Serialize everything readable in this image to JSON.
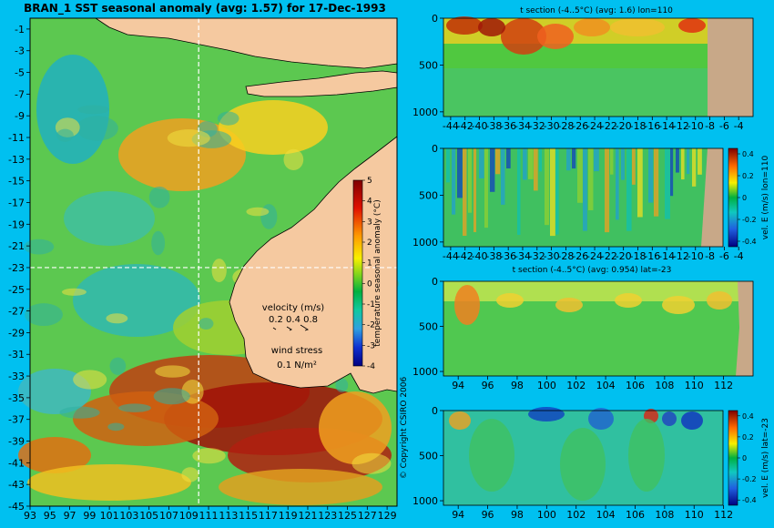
{
  "chart_data": [
    {
      "type": "heatmap",
      "panel": "map",
      "title": "BRAN_1 SST seasonal anomaly (avg: 1.57) for 17-Dec-1993",
      "x_ticks": [
        "93",
        "95",
        "97",
        "99",
        "101",
        "103",
        "105",
        "107",
        "109",
        "111",
        "113",
        "115",
        "117",
        "119",
        "121",
        "123",
        "125",
        "127",
        "129"
      ],
      "y_ticks": [
        "-1",
        "-3",
        "-5",
        "-7",
        "-9",
        "-11",
        "-13",
        "-15",
        "-17",
        "-19",
        "-21",
        "-23",
        "-25",
        "-27",
        "-29",
        "-31",
        "-33",
        "-35",
        "-37",
        "-39",
        "-41",
        "-43",
        "-45"
      ],
      "xlim": [
        93,
        130
      ],
      "ylim": [
        -45,
        0
      ],
      "section_lon": 110,
      "section_lat": -23,
      "colorbar": {
        "label": "temperature seasonal anomaly (°C)",
        "ticks": [
          "5",
          "4",
          "3",
          "2",
          "1",
          "0",
          "-1",
          "-2",
          "-3",
          "-4"
        ],
        "range": [
          -4,
          5
        ]
      },
      "velocity_legend": {
        "title": "velocity (m/s)",
        "values": "0.2 0.4 0.8"
      },
      "wind_legend": {
        "title": "wind stress",
        "value": "0.1 N/m²"
      },
      "copyright": "© Copyright CSIRO 2006"
    },
    {
      "type": "heatmap",
      "panel": "t-section-lon",
      "title": "t section (-4..5°C) (avg: 1.6) lon=110",
      "x_ticks": [
        "-44",
        "-42",
        "-40",
        "-38",
        "-36",
        "-34",
        "-32",
        "-30",
        "-28",
        "-26",
        "-24",
        "-22",
        "-20",
        "-18",
        "-16",
        "-14",
        "-12",
        "-10",
        "-8",
        "-6",
        "-4"
      ],
      "y_ticks": [
        "0",
        "500",
        "1000"
      ],
      "xlim": [
        -45,
        -2
      ],
      "ylim": [
        1050,
        0
      ]
    },
    {
      "type": "heatmap",
      "panel": "vel-section-lon",
      "x_ticks": [
        "-44",
        "-42",
        "-40",
        "-38",
        "-36",
        "-34",
        "-32",
        "-30",
        "-28",
        "-26",
        "-24",
        "-22",
        "-20",
        "-18",
        "-16",
        "-14",
        "-12",
        "-10",
        "-8",
        "-6",
        "-4"
      ],
      "y_ticks": [
        "0",
        "500",
        "1000"
      ],
      "xlim": [
        -45,
        -2
      ],
      "ylim": [
        1050,
        0
      ],
      "colorbar": {
        "label": "vel. E (m/s) lon=110",
        "ticks": [
          "0.4",
          "0.2",
          "0",
          "-0.2",
          "-0.4"
        ],
        "range": [
          -0.45,
          0.45
        ]
      }
    },
    {
      "type": "heatmap",
      "panel": "t-section-lat",
      "title": "t section (-4..5°C) (avg: 0.954) lat=-23",
      "x_ticks": [
        "94",
        "96",
        "98",
        "100",
        "102",
        "104",
        "106",
        "108",
        "110",
        "112"
      ],
      "y_ticks": [
        "0",
        "500",
        "1000"
      ],
      "xlim": [
        93,
        114
      ],
      "ylim": [
        1050,
        0
      ]
    },
    {
      "type": "heatmap",
      "panel": "vel-section-lat",
      "x_ticks": [
        "94",
        "96",
        "98",
        "100",
        "102",
        "104",
        "106",
        "108",
        "110",
        "112"
      ],
      "y_ticks": [
        "0",
        "500",
        "1000"
      ],
      "xlim": [
        93,
        114
      ],
      "ylim": [
        1050,
        0
      ],
      "colorbar": {
        "label": "vel. E (m/s) lat=-23",
        "ticks": [
          "0.4",
          "0.2",
          "0",
          "-0.2",
          "-0.4"
        ],
        "range": [
          -0.45,
          0.45
        ]
      }
    }
  ]
}
